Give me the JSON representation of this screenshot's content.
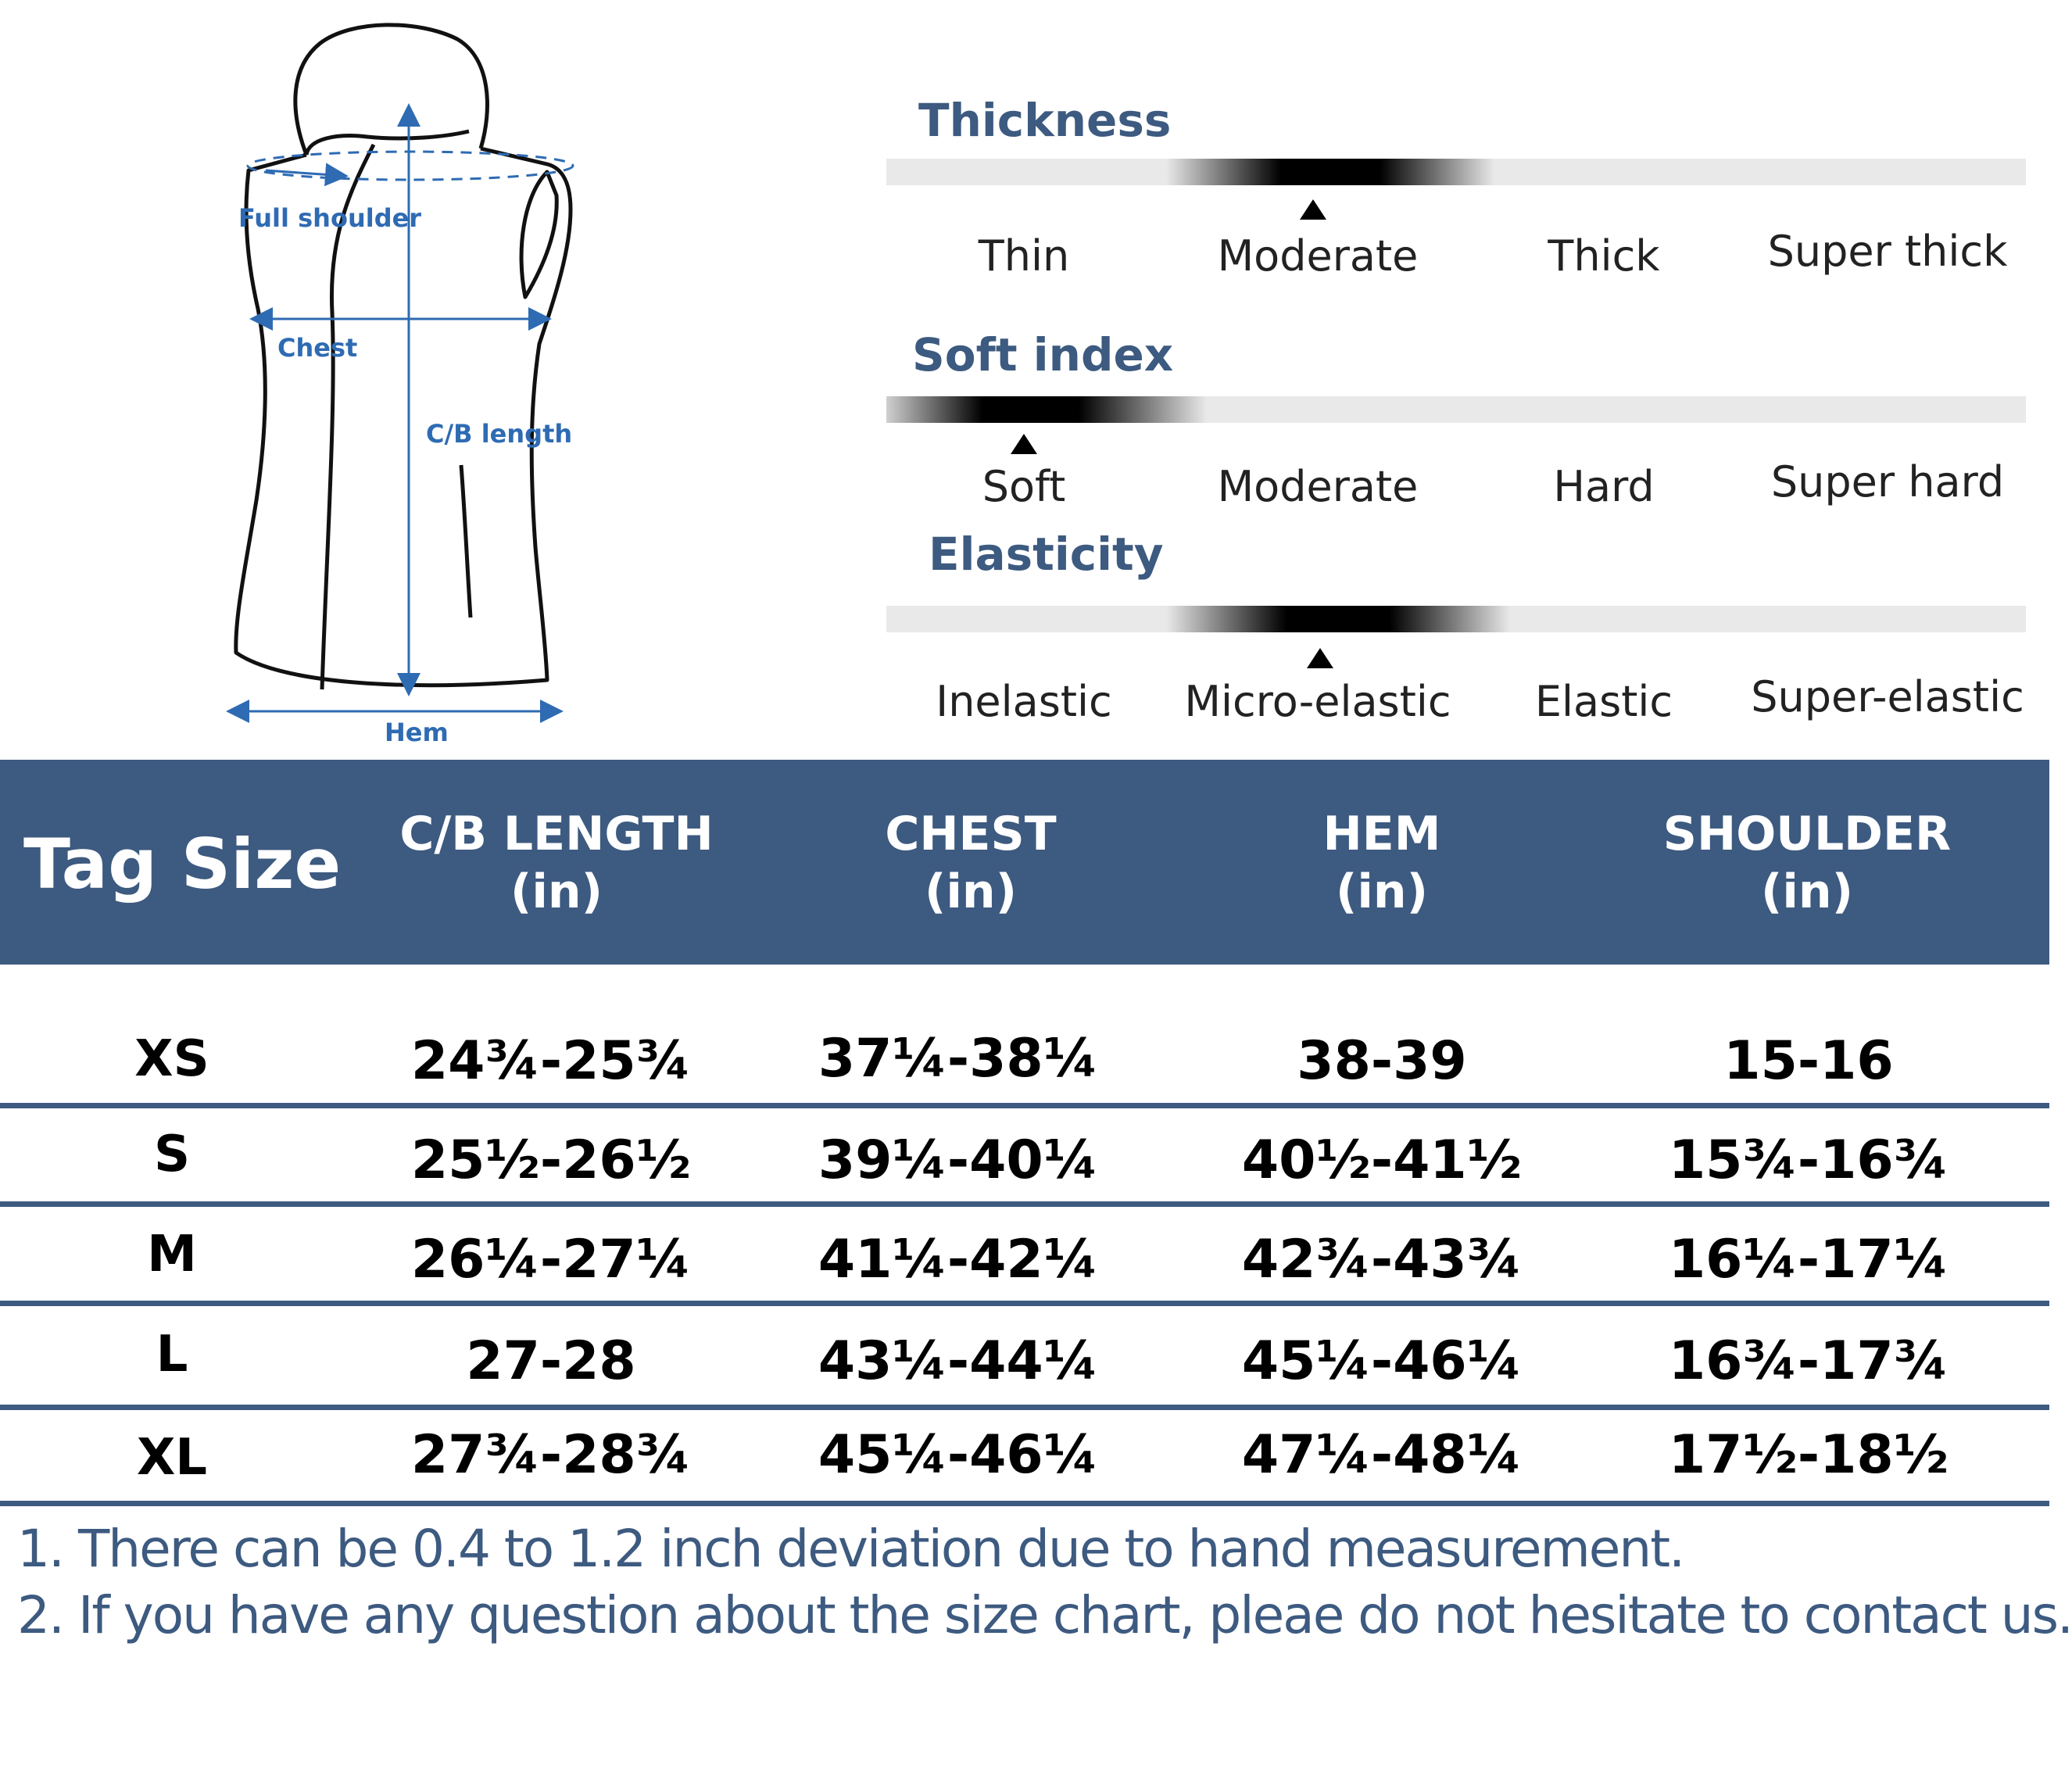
{
  "diagram": {
    "labels": {
      "full_shoulder": "Full shoulder",
      "chest": "Chest",
      "cb_length": "C/B length",
      "hem": "Hem"
    }
  },
  "attributes": [
    {
      "title": "Thickness",
      "options": [
        "Thin",
        "Moderate",
        "Thick",
        "Super thick"
      ],
      "selected": "Moderate"
    },
    {
      "title": "Soft index",
      "options": [
        "Soft",
        "Moderate",
        "Hard",
        "Super hard"
      ],
      "selected": "Soft"
    },
    {
      "title": "Elasticity",
      "options": [
        "Inelastic",
        "Micro-elastic",
        "Elastic",
        "Super-elastic"
      ],
      "selected": "Micro-elastic"
    }
  ],
  "table": {
    "headers": {
      "tag_size": "Tag Size",
      "cb_length": [
        "C/B LENGTH",
        "(in)"
      ],
      "chest": [
        "CHEST",
        "(in)"
      ],
      "hem": [
        "HEM",
        "(in)"
      ],
      "shoulder": [
        "SHOULDER",
        "(in)"
      ]
    },
    "rows": [
      {
        "size": "XS",
        "cb_length": "24¾-25¾",
        "chest": "37¼-38¼",
        "hem": "38-39",
        "shoulder": "15-16"
      },
      {
        "size": "S",
        "cb_length": "25½-26½",
        "chest": "39¼-40¼",
        "hem": "40½-41½",
        "shoulder": "15¾-16¾"
      },
      {
        "size": "M",
        "cb_length": "26¼-27¼",
        "chest": "41¼-42¼",
        "hem": "42¾-43¾",
        "shoulder": "16¼-17¼"
      },
      {
        "size": "L",
        "cb_length": "27-28",
        "chest": "43¼-44¼",
        "hem": "45¼-46¼",
        "shoulder": "16¾-17¾"
      },
      {
        "size": "XL",
        "cb_length": "27¾-28¾",
        "chest": "45¼-46¼",
        "hem": "47¼-48¼",
        "shoulder": "17½-18½"
      }
    ]
  },
  "notes": [
    "1. There can be 0.4 to 1.2 inch deviation due to hand measurement.",
    "2. If you have any question about the size chart, pleae do not hesitate to contact us."
  ],
  "colors": {
    "header_bg": "#3d5a80",
    "title_blue": "#3d5a80",
    "diagram_blue": "#2e6bb3",
    "bar_gray": "#e9e9e9"
  }
}
